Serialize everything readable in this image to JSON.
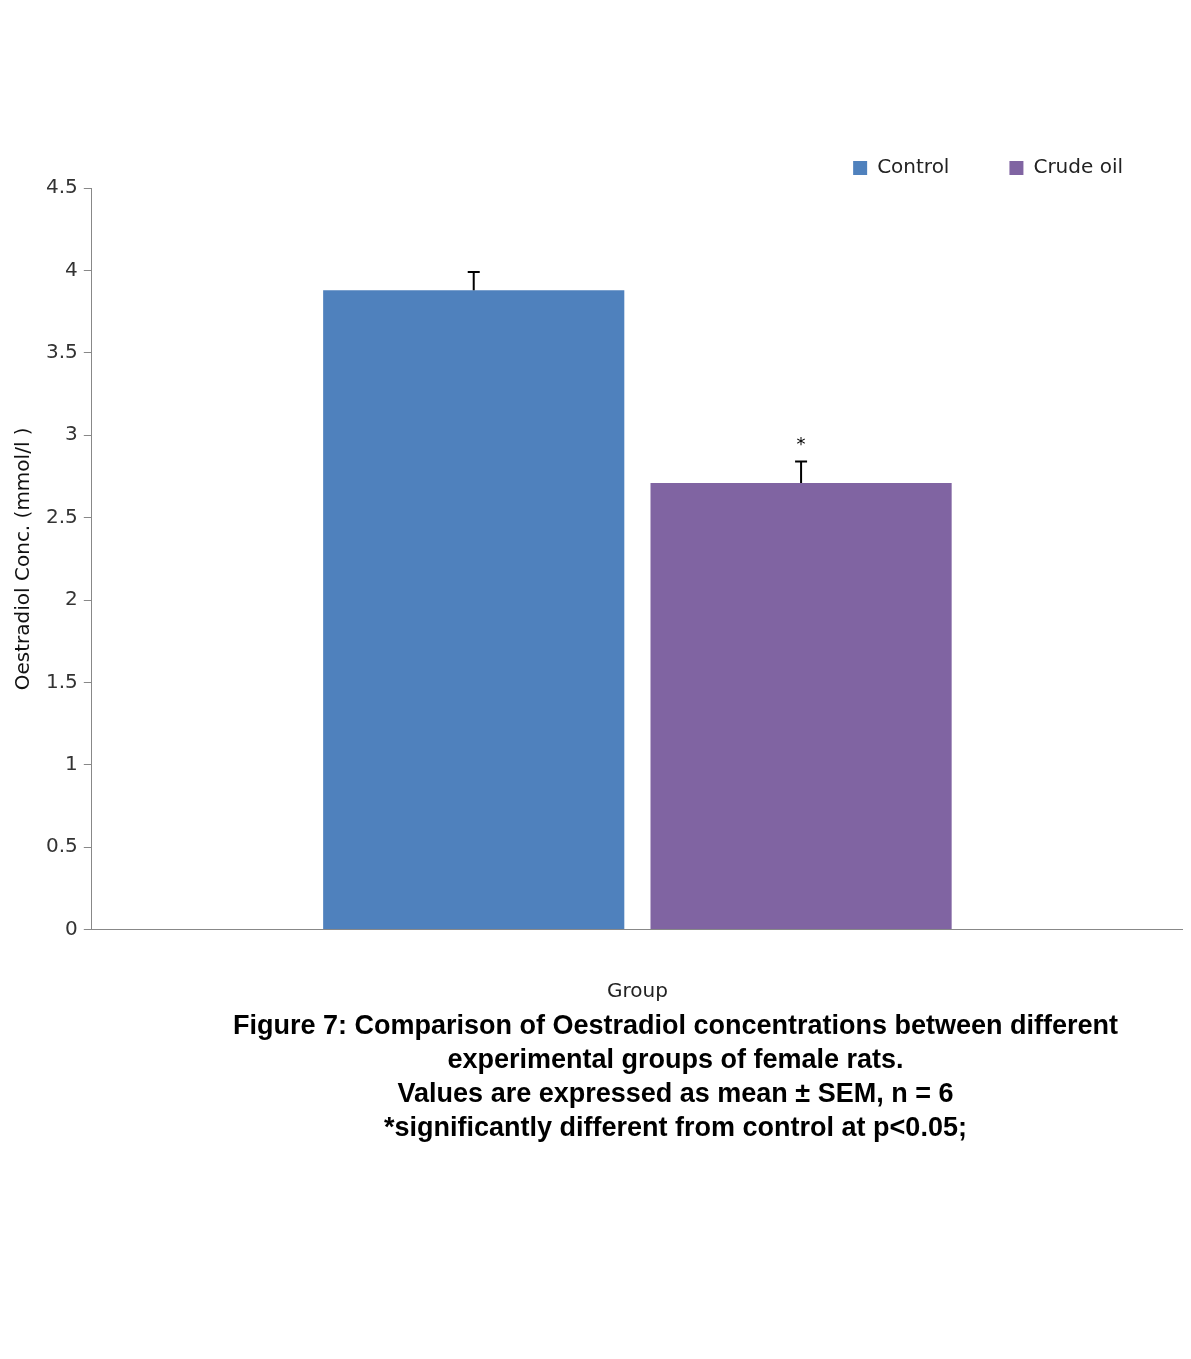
{
  "chart_data": {
    "type": "bar",
    "title": "Figure 7: Comparison of  Oestradiol concentrations between different experimental groups of female rats.",
    "xlabel": "Group",
    "ylabel": "Oestradiol Conc. (mmol/l )",
    "categories": [
      null
    ],
    "series": [
      {
        "name": "Control",
        "color": "#4f81bd",
        "values": [
          3.88
        ],
        "errors": [
          [
            3.88,
            3.99
          ]
        ],
        "value_labels": [
          null
        ]
      },
      {
        "name": "Crude oil",
        "color": "#8064a2",
        "values": [
          2.71
        ],
        "errors": [
          [
            2.71,
            2.84
          ]
        ],
        "value_labels": [
          "*"
        ]
      }
    ],
    "annotations": [
      "Values are expressed as mean ± SEM, n = 6",
      "*significantly different from control at p<0.05;"
    ],
    "ylim": [
      0,
      4.5
    ],
    "yticks": [
      0,
      0.5,
      1,
      1.5,
      2,
      2.5,
      3,
      3.5,
      4,
      4.5
    ],
    "grid": false,
    "legend": "top right"
  }
}
